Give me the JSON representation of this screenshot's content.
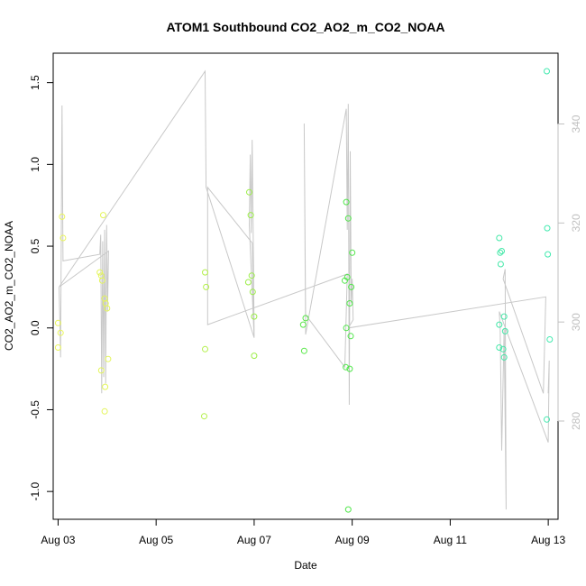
{
  "chart_data": {
    "type": "scatter",
    "title": "ATOM1 Southbound CO2_AO2_m_CO2_NOAA",
    "xlabel": "Date",
    "ylabel": "CO2_AO2_m_CO2_NOAA",
    "xlim": [
      2.9,
      13.2
    ],
    "ylim": [
      -1.17,
      1.68
    ],
    "x_ticks": [
      3,
      5,
      7,
      9,
      11,
      13
    ],
    "x_tick_labels": [
      "Aug 03",
      "Aug 05",
      "Aug 07",
      "Aug 09",
      "Aug 11",
      "Aug 13"
    ],
    "y_ticks": [
      -1.0,
      -0.5,
      0.0,
      0.5,
      1.0,
      1.5
    ],
    "y_tick_labels": [
      "-1.0",
      "-0.5",
      "0.0",
      "0.5",
      "1.0",
      "1.5"
    ],
    "y2_lim": [
      260.15,
      354.3
    ],
    "y2_ticks": [
      280,
      300,
      320,
      340
    ],
    "y2_tick_labels": [
      "280",
      "300",
      "320",
      "340"
    ],
    "grid": false,
    "line_color": "#c8c8c8",
    "point_series": [
      {
        "color": "#e9f55a",
        "points": [
          [
            3.0,
            0.03
          ],
          [
            3.05,
            -0.03
          ],
          [
            3.0,
            -0.12
          ],
          [
            3.1,
            0.55
          ],
          [
            3.08,
            0.68
          ]
        ]
      },
      {
        "color": "#e4f55a",
        "points": [
          [
            3.85,
            0.34
          ],
          [
            3.88,
            0.32
          ],
          [
            3.9,
            0.29
          ],
          [
            3.92,
            0.69
          ],
          [
            3.95,
            0.18
          ],
          [
            3.97,
            0.15
          ],
          [
            4.0,
            0.12
          ],
          [
            3.88,
            -0.26
          ],
          [
            3.96,
            -0.36
          ],
          [
            3.95,
            -0.51
          ],
          [
            4.02,
            -0.19
          ]
        ]
      },
      {
        "color": "#b4f04b",
        "points": [
          [
            6.0,
            0.34
          ],
          [
            6.02,
            0.25
          ],
          [
            6.0,
            -0.13
          ],
          [
            5.98,
            -0.54
          ]
        ]
      },
      {
        "color": "#9cee48",
        "points": [
          [
            6.9,
            0.83
          ],
          [
            6.93,
            0.69
          ],
          [
            6.95,
            0.32
          ],
          [
            6.88,
            0.28
          ],
          [
            6.97,
            0.22
          ],
          [
            7.0,
            0.07
          ],
          [
            7.0,
            -0.17
          ]
        ]
      },
      {
        "color": "#58e848",
        "points": [
          [
            8.0,
            0.02
          ],
          [
            8.05,
            0.06
          ],
          [
            8.02,
            -0.14
          ]
        ]
      },
      {
        "color": "#50e64a",
        "points": [
          [
            8.88,
            0.77
          ],
          [
            8.92,
            0.67
          ],
          [
            8.9,
            0.31
          ],
          [
            8.85,
            0.29
          ],
          [
            9.0,
            0.46
          ],
          [
            8.98,
            0.25
          ],
          [
            8.95,
            0.15
          ],
          [
            8.88,
            0.0
          ],
          [
            8.97,
            -0.05
          ],
          [
            8.87,
            -0.24
          ],
          [
            8.95,
            -0.25
          ],
          [
            8.92,
            -1.11
          ]
        ]
      },
      {
        "color": "#44e8a8",
        "points": [
          [
            12.0,
            0.55
          ],
          [
            12.02,
            0.46
          ],
          [
            12.05,
            0.47
          ],
          [
            12.03,
            0.39
          ],
          [
            12.1,
            0.07
          ],
          [
            12.0,
            0.02
          ],
          [
            12.12,
            -0.02
          ],
          [
            12.0,
            -0.12
          ],
          [
            12.08,
            -0.13
          ],
          [
            12.1,
            -0.18
          ]
        ]
      },
      {
        "color": "#44eab0",
        "points": [
          [
            12.97,
            1.57
          ],
          [
            12.98,
            0.61
          ],
          [
            12.99,
            0.45
          ],
          [
            13.03,
            -0.07
          ],
          [
            12.97,
            -0.56
          ]
        ]
      }
    ],
    "line_series": [
      [
        3.02,
        0.25
      ],
      [
        3.04,
        0.0
      ],
      [
        3.05,
        -0.18
      ],
      [
        3.08,
        1.36
      ],
      [
        3.1,
        0.41
      ],
      [
        3.85,
        0.45
      ],
      [
        3.87,
        0.57
      ],
      [
        3.89,
        -0.4
      ],
      [
        3.91,
        0.53
      ],
      [
        3.93,
        -0.3
      ],
      [
        3.95,
        0.6
      ],
      [
        3.97,
        -0.34
      ],
      [
        3.99,
        0.63
      ],
      [
        4.01,
        0.1
      ],
      [
        4.03,
        0.47
      ],
      [
        3.02,
        0.25
      ],
      [
        6.0,
        1.57
      ],
      [
        6.02,
        0.86
      ],
      [
        7.0,
        -0.06
      ],
      [
        6.9,
        0.63
      ],
      [
        6.92,
        1.06
      ],
      [
        6.94,
        0.58
      ],
      [
        6.96,
        1.15
      ],
      [
        6.98,
        0.6
      ],
      [
        7.0,
        -0.05
      ],
      [
        6.96,
        0.52
      ],
      [
        6.05,
        0.86
      ],
      [
        6.05,
        0.02
      ],
      [
        8.9,
        0.33
      ],
      [
        8.85,
        -0.24
      ],
      [
        8.05,
        0.08
      ],
      [
        8.02,
        1.25
      ],
      [
        8.05,
        -0.04
      ],
      [
        8.88,
        1.34
      ],
      [
        8.9,
        0.6
      ],
      [
        8.92,
        1.37
      ],
      [
        8.94,
        -0.47
      ],
      [
        8.96,
        1.08
      ],
      [
        8.98,
        0.15
      ],
      [
        9.0,
        0.3
      ],
      [
        9.02,
        0.05
      ],
      [
        8.92,
        0.0
      ],
      [
        12.95,
        0.19
      ],
      [
        12.9,
        -0.4
      ],
      [
        12.08,
        0.3
      ],
      [
        12.12,
        0.36
      ],
      [
        12.14,
        -1.11
      ],
      [
        12.1,
        0.0
      ],
      [
        12.05,
        -0.75
      ],
      [
        12.02,
        0.0
      ],
      [
        12.0,
        0.1
      ],
      [
        13.0,
        -0.7
      ],
      [
        13.02,
        -0.2
      ],
      [
        13.0,
        -0.4
      ]
    ]
  }
}
